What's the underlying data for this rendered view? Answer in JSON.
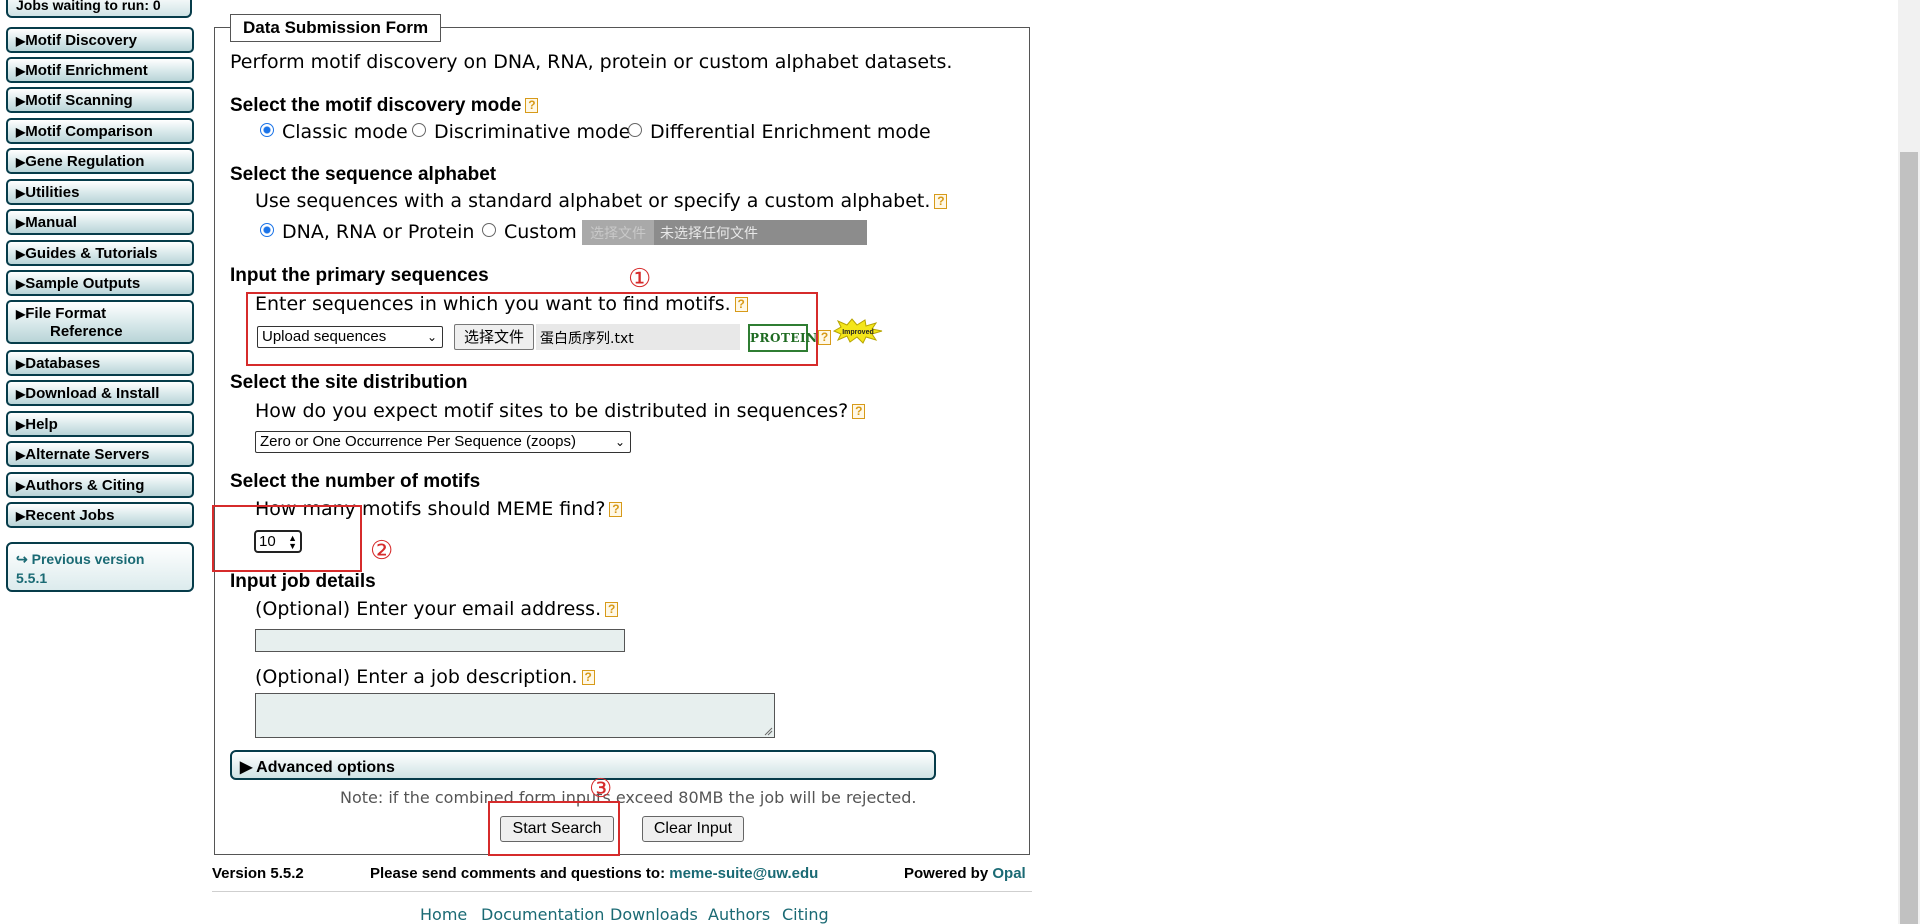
{
  "sidebar": {
    "jobs_waiting": "Jobs waiting to run: 0",
    "items": [
      {
        "label": "Motif Discovery"
      },
      {
        "label": "Motif Enrichment"
      },
      {
        "label": "Motif Scanning"
      },
      {
        "label": "Motif Comparison"
      },
      {
        "label": "Gene Regulation"
      },
      {
        "label": "Utilities"
      },
      {
        "label": "Manual"
      },
      {
        "label": "Guides & Tutorials"
      },
      {
        "label": "Sample Outputs"
      },
      {
        "label": "File Format",
        "label2": "Reference"
      },
      {
        "label": "Databases"
      },
      {
        "label": "Download & Install"
      },
      {
        "label": "Help"
      },
      {
        "label": "Alternate Servers"
      },
      {
        "label": "Authors & Citing"
      },
      {
        "label": "Recent Jobs"
      }
    ],
    "previous_version": "↪ Previous version",
    "previous_version_num": "5.5.1"
  },
  "form": {
    "legend": "Data Submission Form",
    "intro": "Perform motif discovery on DNA, RNA, protein or custom alphabet datasets.",
    "mode": {
      "heading": "Select the motif discovery mode",
      "options": [
        "Classic mode",
        "Discriminative mode",
        "Differential Enrichment mode"
      ],
      "selected": "Classic mode"
    },
    "alphabet": {
      "heading": "Select the sequence alphabet",
      "desc": "Use sequences with a standard alphabet or specify a custom alphabet.",
      "options": [
        "DNA, RNA or Protein",
        "Custom"
      ],
      "file_button": "选择文件",
      "file_status": "未选择任何文件"
    },
    "primary": {
      "heading": "Input the primary sequences",
      "desc": "Enter sequences in which you want to find motifs.",
      "select_value": "Upload sequences",
      "file_button": "选择文件",
      "file_name": "蛋白质序列.txt",
      "alphabet_badge": "PROTEIN",
      "improved_badge": "Improved"
    },
    "site": {
      "heading": "Select the site distribution",
      "desc": "How do you expect motif sites to be distributed in sequences?",
      "select_value": "Zero or One Occurrence Per Sequence (zoops)"
    },
    "motifs": {
      "heading": "Select the number of motifs",
      "desc": "How many motifs should MEME find?",
      "value": "10"
    },
    "job": {
      "heading": "Input job details",
      "email_label": "(Optional) Enter your email address.",
      "desc_label": "(Optional) Enter a job description."
    },
    "advanced": "▶ Advanced options",
    "note": "Note: if the combined form inputs exceed 80MB the job will be rejected.",
    "start_button": "Start Search",
    "clear_button": "Clear Input",
    "help_glyph": "?"
  },
  "annotations": {
    "one": "①",
    "two": "②",
    "three": "③",
    "color": "#d62b2b"
  },
  "footer": {
    "version": "Version 5.5.2",
    "comments": "Please send comments and questions to:",
    "email": "meme-suite@uw.edu",
    "powered": "Powered by",
    "powered_link": "Opal",
    "links": [
      "Home",
      "Documentation",
      "Downloads",
      "Authors",
      "Citing"
    ]
  },
  "colors": {
    "nav_border": "#063c4a",
    "link": "#1a6a74",
    "radio_selected": "#1a73e8",
    "protein_badge": "#2f7d32"
  }
}
